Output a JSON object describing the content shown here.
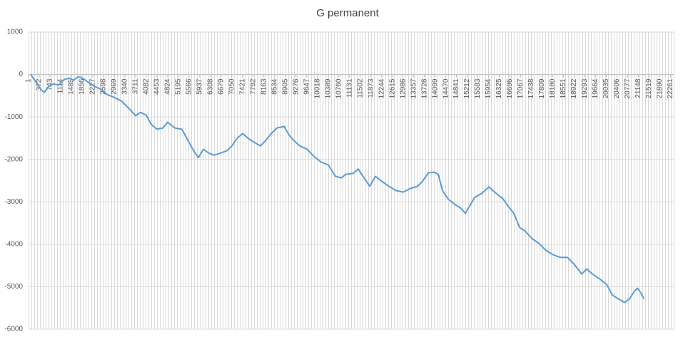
{
  "chart_data": {
    "type": "line",
    "title": "G permanent",
    "x": [
      74,
      250,
      445,
      545,
      690,
      865,
      1040,
      1240,
      1410,
      1560,
      1730,
      1905,
      2105,
      2300,
      2525,
      2720,
      2970,
      3215,
      3465,
      3710,
      3885,
      4085,
      4255,
      4455,
      4655,
      4825,
      5075,
      5320,
      5495,
      5695,
      5890,
      6065,
      6235,
      6435,
      6685,
      6880,
      7055,
      7225,
      7425,
      7625,
      7820,
      8045,
      8220,
      8415,
      8615,
      8860,
      9035,
      9205,
      9405,
      9655,
      9900,
      10150,
      10395,
      10645,
      10840,
      11015,
      11260,
      11435,
      11635,
      11830,
      12030,
      12250,
      12500,
      12745,
      12995,
      13245,
      13490,
      13665,
      13865,
      14060,
      14210,
      14355,
      14555,
      14805,
      14975,
      15150,
      15295,
      15470,
      15720,
      15965,
      16215,
      16460,
      16635,
      16830,
      17030,
      17225,
      17450,
      17695,
      17945,
      18190,
      18440,
      18690,
      18935,
      19185,
      19355,
      19555,
      19805,
      20050,
      20250,
      20450,
      20670,
      20845,
      20995,
      21120,
      21240,
      21340
    ],
    "series": [
      {
        "color": "#5b9bd5",
        "values": [
          0,
          -170,
          -370,
          -420,
          -285,
          -220,
          -250,
          -120,
          -85,
          -135,
          -50,
          -100,
          -200,
          -285,
          -350,
          -470,
          -540,
          -620,
          -790,
          -970,
          -890,
          -960,
          -1175,
          -1290,
          -1260,
          -1125,
          -1260,
          -1290,
          -1510,
          -1760,
          -1960,
          -1760,
          -1845,
          -1900,
          -1845,
          -1795,
          -1680,
          -1510,
          -1390,
          -1510,
          -1595,
          -1680,
          -1560,
          -1390,
          -1260,
          -1225,
          -1425,
          -1560,
          -1680,
          -1760,
          -1930,
          -2065,
          -2130,
          -2400,
          -2435,
          -2350,
          -2330,
          -2230,
          -2435,
          -2635,
          -2400,
          -2515,
          -2635,
          -2735,
          -2770,
          -2685,
          -2635,
          -2515,
          -2315,
          -2300,
          -2350,
          -2735,
          -2935,
          -3070,
          -3140,
          -3270,
          -3105,
          -2900,
          -2800,
          -2650,
          -2800,
          -2935,
          -3105,
          -3270,
          -3605,
          -3690,
          -3860,
          -3975,
          -4145,
          -4245,
          -4310,
          -4310,
          -4480,
          -4700,
          -4580,
          -4700,
          -4815,
          -4950,
          -5200,
          -5285,
          -5370,
          -5285,
          -5120,
          -5035,
          -5150,
          -5285
        ]
      }
    ],
    "xlim": [
      0,
      22400
    ],
    "xticks": [
      1,
      372,
      743,
      1114,
      1485,
      1856,
      2227,
      2598,
      2969,
      3340,
      3711,
      4082,
      4453,
      4824,
      5195,
      5566,
      5937,
      6308,
      6679,
      7050,
      7421,
      7792,
      8163,
      8534,
      8905,
      9276,
      9647,
      10018,
      10389,
      10760,
      11131,
      11502,
      11873,
      12244,
      12615,
      12986,
      13357,
      13728,
      14099,
      14470,
      14841,
      15212,
      15583,
      15954,
      16325,
      16696,
      17067,
      17438,
      17809,
      18180,
      18551,
      18922,
      19293,
      19664,
      20035,
      20406,
      20777,
      21148,
      21519,
      21890,
      22261
    ],
    "ylim": [
      -6000,
      1000
    ],
    "yticks": [
      -6000,
      -5000,
      -4000,
      -3000,
      -2000,
      -1000,
      0,
      1000
    ],
    "grid": true
  }
}
